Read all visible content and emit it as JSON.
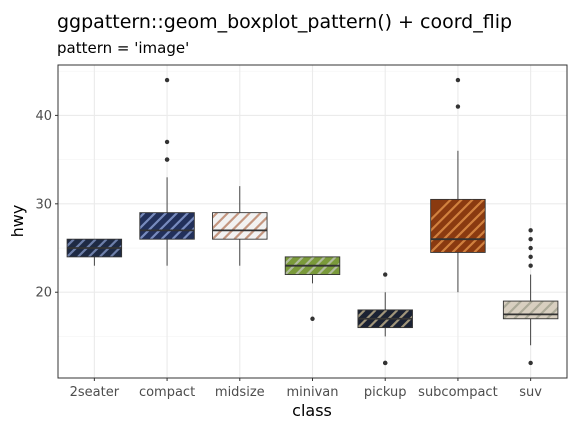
{
  "chart_data": {
    "type": "boxplot",
    "title": "ggpattern::geom_boxplot_pattern() + coord_flip",
    "subtitle": "pattern = 'image'",
    "xlabel": "class",
    "ylabel": "hwy",
    "ylim": [
      10.3,
      45.7
    ],
    "yticks": [
      20,
      30,
      40
    ],
    "grid": true,
    "categories": [
      "2seater",
      "compact",
      "midsize",
      "minivan",
      "pickup",
      "subcompact",
      "suv"
    ],
    "boxes": [
      {
        "q1": 24,
        "median": 25,
        "q3": 26,
        "lower": 23,
        "upper": 26,
        "outliers": []
      },
      {
        "q1": 26,
        "median": 27,
        "q3": 29,
        "lower": 23,
        "upper": 33,
        "outliers": [
          35,
          37,
          35,
          44
        ]
      },
      {
        "q1": 26,
        "median": 27,
        "q3": 29,
        "lower": 23,
        "upper": 32,
        "outliers": []
      },
      {
        "q1": 22,
        "median": 23,
        "q3": 24,
        "lower": 21,
        "upper": 24,
        "outliers": [
          17
        ]
      },
      {
        "q1": 16,
        "median": 17,
        "q3": 18,
        "lower": 15,
        "upper": 20,
        "outliers": [
          12,
          12,
          22
        ]
      },
      {
        "q1": 24.5,
        "median": 26,
        "q3": 30.5,
        "lower": 20,
        "upper": 36,
        "outliers": [
          44,
          41
        ]
      },
      {
        "q1": 17,
        "median": 17.5,
        "q3": 19,
        "lower": 14,
        "upper": 22,
        "outliers": [
          12,
          27,
          26,
          25,
          24,
          23
        ]
      }
    ],
    "box_fill_colors": [
      "#1e2a44",
      "#22305a",
      "#f2f2f2",
      "#7a9a3a",
      "#1b2233",
      "#8a3a10",
      "#d8cfc0"
    ],
    "box_accent_colors": [
      "#8fa4d6",
      "#9db3e8",
      "#b07050",
      "#c9c9c9",
      "#d9c79a",
      "#f0a055",
      "#9a9a88"
    ]
  }
}
